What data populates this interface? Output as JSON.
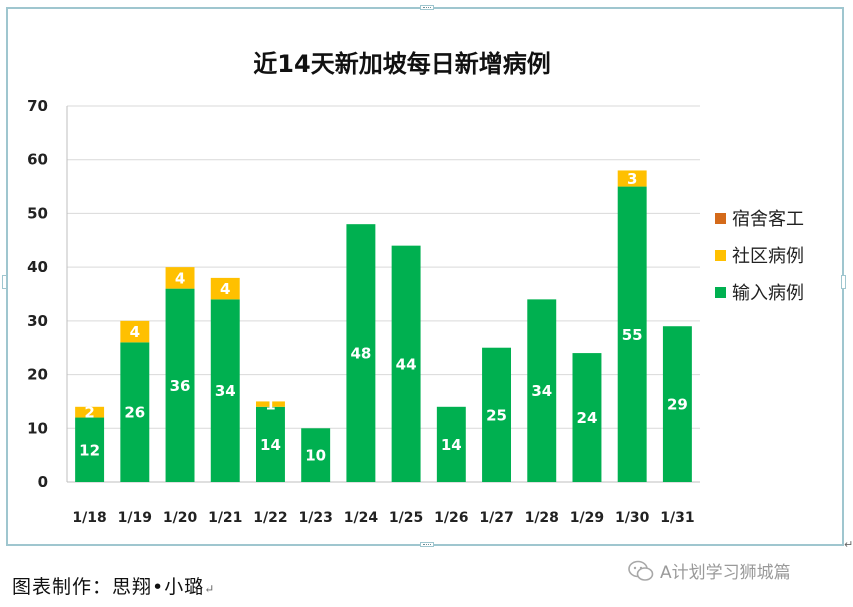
{
  "chart_data": {
    "type": "bar",
    "stacked": true,
    "title": "近14天新加坡每日新增病例",
    "categories": [
      "1/18",
      "1/19",
      "1/20",
      "1/21",
      "1/22",
      "1/23",
      "1/24",
      "1/25",
      "1/26",
      "1/27",
      "1/28",
      "1/29",
      "1/30",
      "1/31"
    ],
    "series": [
      {
        "name": "输入病例",
        "color": "#00b050",
        "values": [
          12,
          26,
          36,
          34,
          14,
          10,
          48,
          44,
          14,
          25,
          34,
          24,
          55,
          29
        ]
      },
      {
        "name": "社区病例",
        "color": "#ffc000",
        "values": [
          2,
          4,
          4,
          4,
          1,
          0,
          0,
          0,
          0,
          0,
          0,
          0,
          3,
          0
        ]
      },
      {
        "name": "宿舍客工",
        "color": "#d46a1a",
        "values": [
          0,
          0,
          0,
          0,
          0,
          0,
          0,
          0,
          0,
          0,
          0,
          0,
          0,
          0
        ]
      }
    ],
    "ylim": [
      0,
      70
    ],
    "yticks": [
      0,
      10,
      20,
      30,
      40,
      50,
      60,
      70
    ],
    "grid": true,
    "legend_position": "right",
    "xlabel": "",
    "ylabel": ""
  },
  "caption": {
    "credit": "图表制作：思翔•小璐",
    "return_mark": "↵"
  },
  "watermark": {
    "icon": "wechat-icon",
    "text": "A计划学习狮城篇"
  }
}
